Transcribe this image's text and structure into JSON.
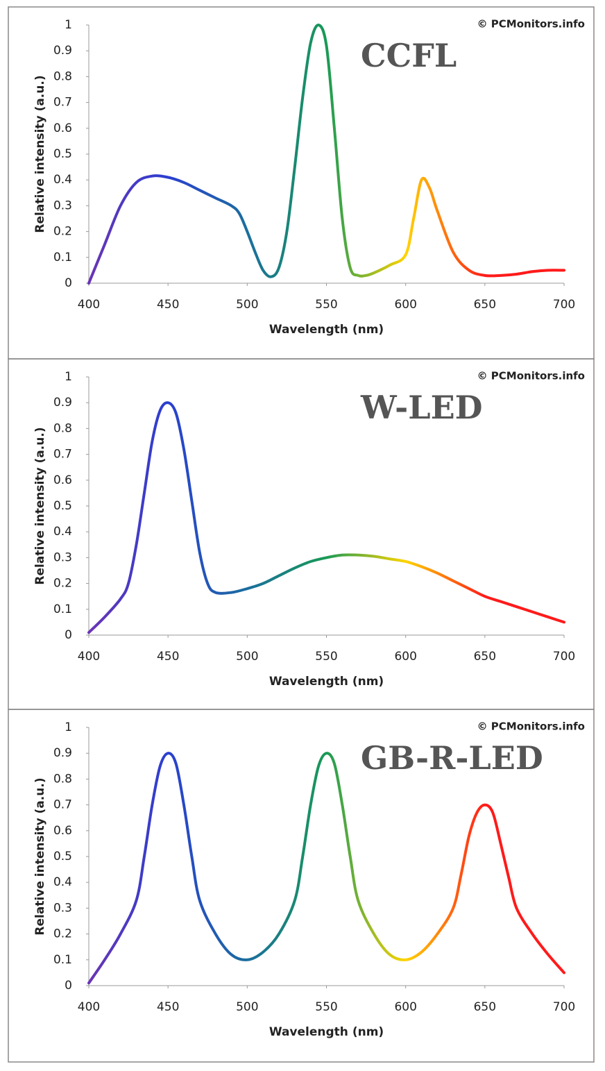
{
  "chart_data": [
    {
      "type": "line",
      "title": "CCFL",
      "annotation": "© PCMonitors.info",
      "x_label": "Wavelength (nm)",
      "y_label": "Relative intensity (a.u.)",
      "x": [
        400,
        410,
        420,
        430,
        440,
        450,
        460,
        470,
        480,
        490,
        495,
        500,
        505,
        510,
        515,
        520,
        525,
        530,
        535,
        540,
        545,
        550,
        555,
        560,
        565,
        570,
        575,
        580,
        590,
        600,
        605,
        610,
        615,
        620,
        630,
        640,
        650,
        660,
        670,
        680,
        690,
        700
      ],
      "series": [
        {
          "values": [
            0,
            0.15,
            0.3,
            0.39,
            0.415,
            0.41,
            0.39,
            0.36,
            0.33,
            0.3,
            0.27,
            0.2,
            0.12,
            0.05,
            0.025,
            0.06,
            0.2,
            0.45,
            0.72,
            0.93,
            1,
            0.92,
            0.6,
            0.25,
            0.06,
            0.03,
            0.03,
            0.04,
            0.07,
            0.11,
            0.25,
            0.4,
            0.37,
            0.28,
            0.12,
            0.05,
            0.03,
            0.03,
            0.035,
            0.045,
            0.05,
            0.05
          ],
          "colors": [
            "#6a35b5",
            "#2a3fd0",
            "#1b6e9e",
            "#189a55",
            "#ffd400",
            "#ff1a1a",
            "#ff1a1a"
          ]
        }
      ],
      "xlim": [
        400,
        700
      ],
      "xticks": [
        400,
        450,
        500,
        550,
        600,
        650,
        700
      ],
      "ylim": [
        0,
        1
      ],
      "yticks": [
        0,
        0.1,
        0.2,
        0.3,
        0.4,
        0.5,
        0.6,
        0.7,
        0.8,
        0.9,
        1
      ]
    },
    {
      "type": "line",
      "title": "W-LED",
      "annotation": "© PCMonitors.info",
      "x_label": "Wavelength (nm)",
      "y_label": "Relative intensity (a.u.)",
      "x": [
        400,
        410,
        420,
        425,
        430,
        435,
        440,
        445,
        450,
        455,
        460,
        465,
        470,
        475,
        480,
        490,
        500,
        510,
        520,
        530,
        540,
        550,
        560,
        570,
        580,
        590,
        600,
        610,
        620,
        630,
        640,
        650,
        660,
        670,
        680,
        690,
        700
      ],
      "series": [
        {
          "values": [
            0.01,
            0.07,
            0.14,
            0.2,
            0.35,
            0.55,
            0.75,
            0.87,
            0.9,
            0.86,
            0.72,
            0.52,
            0.32,
            0.2,
            0.165,
            0.165,
            0.18,
            0.2,
            0.23,
            0.26,
            0.285,
            0.3,
            0.31,
            0.31,
            0.305,
            0.295,
            0.285,
            0.265,
            0.24,
            0.21,
            0.18,
            0.15,
            0.13,
            0.11,
            0.09,
            0.07,
            0.05
          ],
          "colors": [
            "#6a35b5",
            "#2a3fd0",
            "#1b6e9e",
            "#189a55",
            "#ffd400",
            "#ff1a1a",
            "#ff1a1a"
          ]
        }
      ],
      "xlim": [
        400,
        700
      ],
      "xticks": [
        400,
        450,
        500,
        550,
        600,
        650,
        700
      ],
      "ylim": [
        0,
        1
      ],
      "yticks": [
        0,
        0.1,
        0.2,
        0.3,
        0.4,
        0.5,
        0.6,
        0.7,
        0.8,
        0.9,
        1
      ]
    },
    {
      "type": "line",
      "title": "GB-R-LED",
      "annotation": "© PCMonitors.info",
      "x_label": "Wavelength (nm)",
      "y_label": "Relative intensity (a.u.)",
      "x": [
        400,
        410,
        420,
        430,
        435,
        440,
        445,
        450,
        455,
        460,
        465,
        470,
        480,
        490,
        500,
        510,
        520,
        530,
        535,
        540,
        545,
        550,
        555,
        560,
        565,
        570,
        580,
        590,
        600,
        610,
        620,
        630,
        635,
        640,
        645,
        650,
        655,
        660,
        665,
        670,
        680,
        690,
        700
      ],
      "series": [
        {
          "values": [
            0.01,
            0.1,
            0.2,
            0.33,
            0.5,
            0.7,
            0.85,
            0.9,
            0.86,
            0.7,
            0.5,
            0.33,
            0.2,
            0.12,
            0.1,
            0.13,
            0.2,
            0.33,
            0.5,
            0.7,
            0.85,
            0.9,
            0.86,
            0.7,
            0.5,
            0.33,
            0.2,
            0.12,
            0.1,
            0.13,
            0.2,
            0.3,
            0.43,
            0.58,
            0.67,
            0.7,
            0.67,
            0.55,
            0.42,
            0.3,
            0.2,
            0.12,
            0.05
          ],
          "colors": [
            "#6a35b5",
            "#2a3fd0",
            "#1b6e9e",
            "#189a55",
            "#ffd400",
            "#ff1a1a",
            "#ff1a1a"
          ]
        }
      ],
      "xlim": [
        400,
        700
      ],
      "xticks": [
        400,
        450,
        500,
        550,
        600,
        650,
        700
      ],
      "ylim": [
        0,
        1
      ],
      "yticks": [
        0,
        0.1,
        0.2,
        0.3,
        0.4,
        0.5,
        0.6,
        0.7,
        0.8,
        0.9,
        1
      ]
    }
  ]
}
